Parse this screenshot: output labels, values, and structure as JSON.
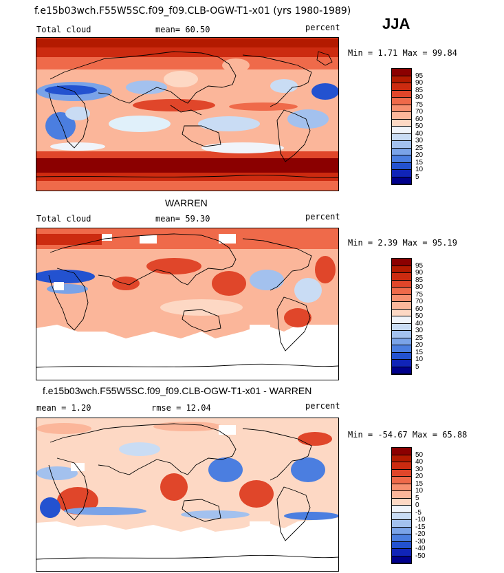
{
  "header": {
    "title": "f.e15b03wch.F55W5SC.f09_f09.CLB-OGW-T1-x01 (yrs 1980-1989)",
    "season": "JJA"
  },
  "panels": [
    {
      "variable": "Total cloud",
      "stat": "mean=  60.50",
      "units": "percent",
      "minmax": "Min =   1.71 Max =  99.84",
      "colorbar": {
        "levels": [
          "95",
          "90",
          "85",
          "80",
          "75",
          "70",
          "60",
          "50",
          "40",
          "30",
          "25",
          "20",
          "15",
          "10",
          "5"
        ],
        "colors": [
          "#8b0000",
          "#b31a00",
          "#cc2b10",
          "#e0462a",
          "#ef6a4a",
          "#f79070",
          "#fbb69a",
          "#fdd8c4",
          "#f0f4fa",
          "#c9dcf4",
          "#a3c1ee",
          "#7aa3e8",
          "#4b7ee0",
          "#2352d0",
          "#1024b8",
          "#00008b"
        ]
      }
    },
    {
      "panel_title": "WARREN",
      "variable": "Total cloud",
      "stat": "mean=  59.30",
      "units": "percent",
      "minmax": "Min =   2.39 Max =  95.19",
      "colorbar": {
        "levels": [
          "95",
          "90",
          "85",
          "80",
          "75",
          "70",
          "60",
          "50",
          "40",
          "30",
          "25",
          "20",
          "15",
          "10",
          "5"
        ],
        "colors": [
          "#8b0000",
          "#b31a00",
          "#cc2b10",
          "#e0462a",
          "#ef6a4a",
          "#f79070",
          "#fbb69a",
          "#fdd8c4",
          "#f0f4fa",
          "#c9dcf4",
          "#a3c1ee",
          "#7aa3e8",
          "#4b7ee0",
          "#2352d0",
          "#1024b8",
          "#00008b"
        ]
      }
    },
    {
      "panel_title": "f.e15b03wch.F55W5SC.f09_f09.CLB-OGW-T1-x01 - WARREN",
      "mean": "mean =   1.20",
      "rmse": "rmse =  12.04",
      "units": "percent",
      "minmax": "Min = -54.67 Max =  65.88",
      "colorbar": {
        "levels": [
          "50",
          "40",
          "30",
          "20",
          "15",
          "10",
          "5",
          "0",
          "-5",
          "-10",
          "-15",
          "-20",
          "-30",
          "-40",
          "-50"
        ],
        "colors": [
          "#8b0000",
          "#b31a00",
          "#cc2b10",
          "#e0462a",
          "#ef6a4a",
          "#f79070",
          "#fbb69a",
          "#fdd8c4",
          "#f0f4fa",
          "#c9dcf4",
          "#a3c1ee",
          "#7aa3e8",
          "#4b7ee0",
          "#2352d0",
          "#1024b8",
          "#00008b"
        ]
      }
    }
  ]
}
